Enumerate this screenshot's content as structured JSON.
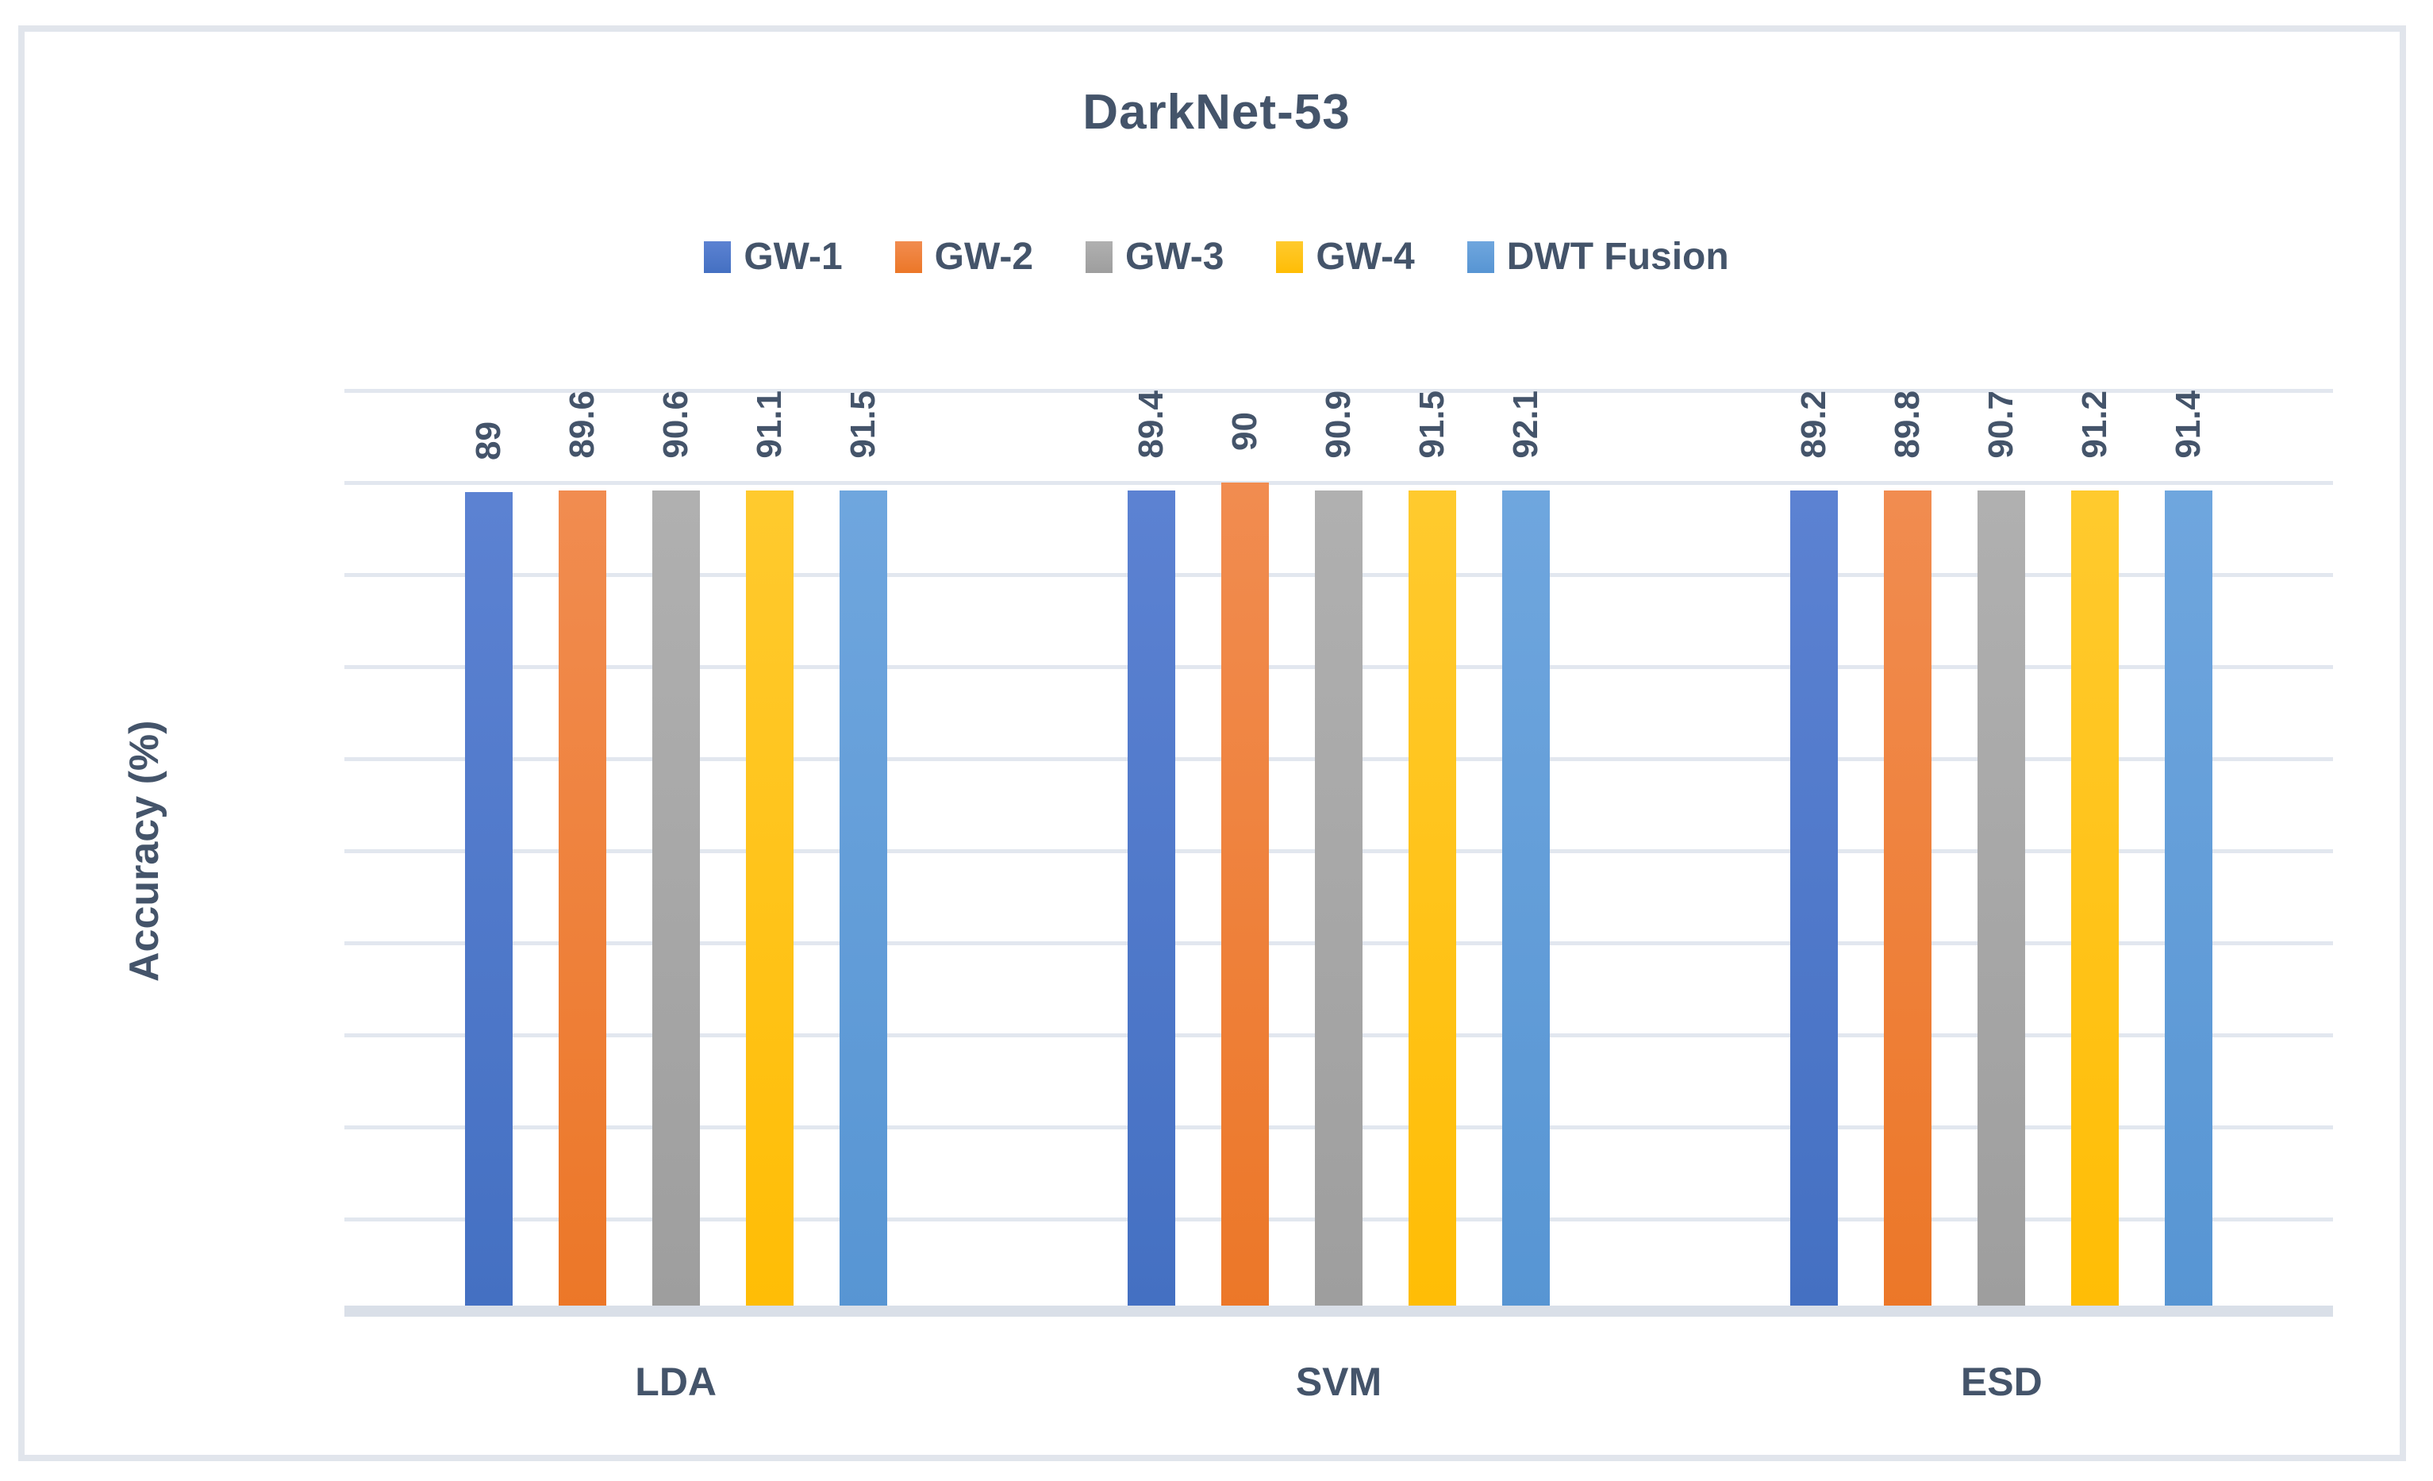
{
  "chart": {
    "title": "DarkNet-53",
    "y_axis_title": "Accuracy (%)"
  },
  "chart_data": {
    "type": "bar",
    "title": "DarkNet-53",
    "xlabel": "",
    "ylabel": "Accuracy (%)",
    "categories": [
      "LDA",
      "SVM",
      "ESD"
    ],
    "series": [
      {
        "name": "GW-1",
        "color": "#4472C4",
        "fill_light": "#5c82d2",
        "fill_dark": "#4470c2",
        "values": [
          89,
          89.4,
          89.2
        ]
      },
      {
        "name": "GW-2",
        "color": "#ED7D31",
        "fill_light": "#f18c50",
        "fill_dark": "#ec7728",
        "values": [
          89.6,
          90,
          89.8
        ]
      },
      {
        "name": "GW-3",
        "color": "#A5A5A5",
        "fill_light": "#b0b0b0",
        "fill_dark": "#9e9e9e",
        "values": [
          90.6,
          90.9,
          90.7
        ]
      },
      {
        "name": "GW-4",
        "color": "#FFC000",
        "fill_light": "#ffca2e",
        "fill_dark": "#ffbd05",
        "values": [
          91.1,
          91.5,
          91.2
        ]
      },
      {
        "name": "DWT Fusion",
        "color": "#5B9BD5",
        "fill_light": "#6fa6de",
        "fill_dark": "#5795d3",
        "values": [
          91.5,
          92.1,
          91.4
        ]
      }
    ],
    "data_labels": [
      [
        "89",
        "89.6",
        "90.6",
        "91.1",
        "91.5"
      ],
      [
        "89.4",
        "90",
        "90.9",
        "91.5",
        "92.1"
      ],
      [
        "89.2",
        "89.8",
        "90.7",
        "91.2",
        "91.4"
      ]
    ],
    "ylim": [
      0,
      100
    ],
    "ytick_step": 10,
    "yticks": [
      0,
      10,
      20,
      30,
      40,
      50,
      60,
      70,
      80,
      90,
      100
    ],
    "grid": true,
    "legend_position": "top",
    "text_color": "#44546A",
    "gridline_color": "#E2E7EF",
    "axis_line_color": "#D9DFE8",
    "frame_border_color": "#E1E5EC"
  }
}
